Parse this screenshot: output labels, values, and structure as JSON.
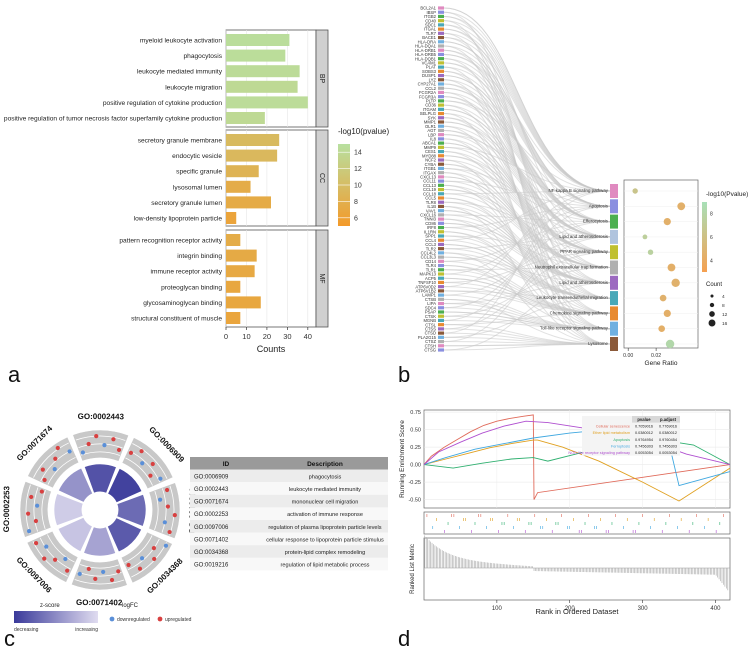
{
  "panel_letters": [
    "a",
    "b",
    "c",
    "d"
  ],
  "chart_data": [
    {
      "panel": "a",
      "type": "bar",
      "orientation": "horizontal",
      "xlabel": "Counts",
      "xticks": [
        0,
        10,
        20,
        30,
        40
      ],
      "xlim": [
        0,
        44
      ],
      "legend_title": "-log10(pvalue)",
      "legend_ticks": [
        14,
        12,
        10,
        8,
        6
      ],
      "legend_range": [
        5,
        15
      ],
      "colors": {
        "high": "#b8e0a0",
        "low": "#f39a2a",
        "strip": "#d0d0d0"
      },
      "groups": [
        {
          "name": "BP",
          "terms": [
            {
              "label": "myeloid leukocyte activation",
              "count": 31,
              "logp": 14.6
            },
            {
              "label": "phagocytosis",
              "count": 29,
              "logp": 14.5
            },
            {
              "label": "leukocyte mediated immunity",
              "count": 36,
              "logp": 14.3
            },
            {
              "label": "leukocyte migration",
              "count": 35,
              "logp": 14.0
            },
            {
              "label": "positive regulation of cytokine production",
              "count": 40,
              "logp": 14.4
            },
            {
              "label": "positive regulation of tumor necrosis factor superfamily cytokine production",
              "count": 19,
              "logp": 14.0
            }
          ]
        },
        {
          "name": "CC",
          "terms": [
            {
              "label": "secretory granule membrane",
              "count": 26,
              "logp": 9.5
            },
            {
              "label": "endocytic vesicle",
              "count": 25,
              "logp": 9.3
            },
            {
              "label": "specific granule",
              "count": 16,
              "logp": 8.6
            },
            {
              "label": "lysosomal lumen",
              "count": 12,
              "logp": 7.6
            },
            {
              "label": "secretory granule lumen",
              "count": 22,
              "logp": 7.4
            },
            {
              "label": "low-density lipoprotein particle",
              "count": 5,
              "logp": 6.4
            }
          ]
        },
        {
          "name": "MF",
          "terms": [
            {
              "label": "pattern recognition receptor activity",
              "count": 7,
              "logp": 7.5
            },
            {
              "label": "integrin binding",
              "count": 15,
              "logp": 7.3
            },
            {
              "label": "immune receptor activity",
              "count": 14,
              "logp": 7.1
            },
            {
              "label": "proteoglycan binding",
              "count": 7,
              "logp": 6.9
            },
            {
              "label": "glycosaminoglycan binding",
              "count": 17,
              "logp": 6.8
            },
            {
              "label": "structural constituent of muscle",
              "count": 7,
              "logp": 6.6
            }
          ]
        }
      ]
    },
    {
      "panel": "b",
      "type": "scatter",
      "subtype": "sankey-dot",
      "genes": [
        "BCL2A1",
        "IBSP",
        "ITGB2",
        "CD40",
        "SDC1",
        "ITGAL",
        "TLR7",
        "BACE1",
        "HLA-DRA",
        "HLA-DQA1",
        "HLA-DRB1",
        "HLA-DRB5",
        "HLA-DQB1",
        "VCAM1",
        "PLAT",
        "SOBS3",
        "DUSP1",
        "LYZ",
        "CYP27A1",
        "CCL2",
        "FCGR2A",
        "FCGR3A",
        "PLTP",
        "CD36",
        "ITGAM",
        "SELPLG",
        "SYK",
        "MMP1",
        "OLR1",
        "AGT",
        "LBP",
        "IL8",
        "ABCA1",
        "MMP9",
        "CES1",
        "MYD88",
        "NCF2",
        "CYBA",
        "ITGB1",
        "ITGAX",
        "CXCL13",
        "CCL11",
        "CCL13",
        "CCL19",
        "CCL18",
        "CCL5",
        "TLR8",
        "IL1B",
        "VAV1",
        "CXCL16",
        "TNNI3",
        "CD86",
        "IRF8",
        "IL1RN",
        "SPP1",
        "CCL4",
        "CCL3",
        "TLR2",
        "CCL4L2",
        "CCL3L3",
        "CD14",
        "TLR4",
        "TLR1",
        "MAPK13",
        "ACP5",
        "TNFSF10",
        "ATP6V0D2",
        "ATP6V1B2",
        "LAMP1",
        "CTSB",
        "LIPA",
        "SDC4",
        "PSAP",
        "CTSK",
        "MGNB",
        "CTSL",
        "CTSS",
        "CTSD",
        "PLA2G15",
        "CTSZ",
        "CTSH",
        "CTSG"
      ],
      "pathways": [
        {
          "name": "NF-kappa B signaling pathway",
          "color": "#e08ac0",
          "gene_ratio": 0.005,
          "logp": 6.4,
          "count": 5
        },
        {
          "name": "Apoptosis",
          "color": "#8a8fe0",
          "gene_ratio": 0.038,
          "logp": 4.5,
          "count": 9
        },
        {
          "name": "Efferocytosis",
          "color": "#4caf50",
          "gene_ratio": 0.028,
          "logp": 4.5,
          "count": 8
        },
        {
          "name": "Lipid and atherosclerosis",
          "color": "#b0c4de",
          "gene_ratio": 0.012,
          "logp": 7.4,
          "count": 4
        },
        {
          "name": "PPAR signaling pathway",
          "color": "#c0c030",
          "gene_ratio": 0.016,
          "logp": 7.6,
          "count": 5
        },
        {
          "name": "Neutrophil extracellular trap formation",
          "color": "#b0b0b0",
          "gene_ratio": 0.031,
          "logp": 4.4,
          "count": 9
        },
        {
          "name": "Lipid and atherosclerosis",
          "color": "#9c6ac0",
          "gene_ratio": 0.034,
          "logp": 4.6,
          "count": 10
        },
        {
          "name": "Leukocyte transendothelial migration",
          "color": "#48a8b8",
          "gene_ratio": 0.025,
          "logp": 4.6,
          "count": 7
        },
        {
          "name": "Chemokine signaling pathway",
          "color": "#e88a30",
          "gene_ratio": 0.028,
          "logp": 4.4,
          "count": 8
        },
        {
          "name": "Toll-like receptor signaling pathway",
          "color": "#70b0e0",
          "gene_ratio": 0.024,
          "logp": 4.4,
          "count": 7
        },
        {
          "name": "Lysosome",
          "color": "#8b5a3a",
          "gene_ratio": 0.03,
          "logp": 8.2,
          "count": 10
        }
      ],
      "xlabel": "Gene Ratio",
      "xticks": [
        0.0,
        0.02
      ],
      "xlim": [
        -0.003,
        0.05
      ],
      "legend_title": "-log10(Pvalue)",
      "legend_ticks": [
        8,
        6,
        4
      ],
      "legend_range": [
        3,
        9
      ],
      "size_title": "Count",
      "size_ticks": [
        4,
        8,
        12,
        16
      ]
    },
    {
      "panel": "c",
      "type": "pie",
      "subtype": "go-circle",
      "terms": [
        {
          "id": "GO:0006909",
          "description": "phagocytosis",
          "zscore": 0.85
        },
        {
          "id": "GO:0002443",
          "description": "leukocyte mediated immunity",
          "zscore": 0.95
        },
        {
          "id": "GO:0071674",
          "description": "mononuclear cell migration",
          "zscore": 0.7
        },
        {
          "id": "GO:0002253",
          "description": "activation of immune response",
          "zscore": 0.8
        },
        {
          "id": "GO:0097006",
          "description": "regulation of plasma lipoprotein particle levels",
          "zscore": 0.35
        },
        {
          "id": "GO:0071402",
          "description": "cellular response to lipoprotein particle stimulus",
          "zscore": 0.15
        },
        {
          "id": "GO:0034368",
          "description": "protein-lipid complex remodeling",
          "zscore": 0.1
        },
        {
          "id": "GO:0019216",
          "description": "regulation of lipid metabolic process",
          "zscore": 0.45
        }
      ],
      "table_headers": [
        "ID",
        "Description"
      ],
      "zscore_legend": {
        "title": "z-score",
        "low": "decreasing",
        "high": "increasing"
      },
      "logfc_legend": {
        "title": "logFC",
        "down": "downregulated",
        "up": "upregulated"
      }
    },
    {
      "panel": "d",
      "type": "line",
      "subtype": "gsea",
      "ylabel": "Running Enrichment Score",
      "yticks": [
        0.75,
        0.5,
        0.25,
        0.0,
        -0.25,
        -0.5
      ],
      "ylim": [
        -0.62,
        0.78
      ],
      "xlabel": "Rank in Ordered Dataset",
      "xticks": [
        100,
        200,
        300,
        400
      ],
      "xlim": [
        0,
        420
      ],
      "metric_ylabel": "Ranked List Metric",
      "table_headers": [
        "pvalue",
        "p.adjust"
      ],
      "series": [
        {
          "name": "Cellular senescence",
          "color": "#e06a5a",
          "pvalue": "0.7059016",
          "padjust": "0.7769016",
          "x": [
            0,
            10,
            28,
            46,
            64,
            82,
            100,
            118,
            136,
            150,
            151,
            156,
            420
          ],
          "y": [
            0.0,
            0.12,
            0.25,
            0.36,
            0.47,
            0.56,
            0.62,
            0.66,
            0.69,
            0.71,
            -0.5,
            -0.4,
            0.0
          ]
        },
        {
          "name": "Ether lipid metabolism",
          "color": "#e0a020",
          "pvalue": "0.0380012",
          "padjust": "0.0380012",
          "x": [
            0,
            30,
            60,
            90,
            120,
            150,
            156,
            190,
            240,
            300,
            350,
            420
          ],
          "y": [
            0.0,
            0.08,
            0.16,
            0.24,
            0.3,
            0.35,
            0.35,
            0.25,
            0.05,
            -0.25,
            -0.52,
            -0.05
          ]
        },
        {
          "name": "Apoptosis",
          "color": "#30b070",
          "pvalue": "0.9764954",
          "padjust": "0.9760454",
          "x": [
            0,
            40,
            80,
            120,
            150,
            170,
            220,
            270,
            320,
            345,
            370,
            420
          ],
          "y": [
            0.0,
            -0.05,
            0.02,
            0.08,
            0.1,
            0.05,
            0.18,
            0.25,
            0.3,
            0.32,
            0.28,
            0.0
          ]
        },
        {
          "name": "Ferroptosis",
          "color": "#40a8e0",
          "pvalue": "0.7456303",
          "padjust": "0.7456303",
          "x": [
            0,
            30,
            70,
            110,
            150,
            200,
            250,
            300,
            330,
            350,
            420
          ],
          "y": [
            0.0,
            0.1,
            0.22,
            0.3,
            0.38,
            0.45,
            0.5,
            0.55,
            0.58,
            -0.3,
            -0.1
          ]
        },
        {
          "name": "NOD-like receptor signaling pathway",
          "color": "#b050d0",
          "pvalue": "0.0053054",
          "padjust": "0.0053054",
          "x": [
            0,
            20,
            50,
            80,
            110,
            140,
            170,
            220,
            270,
            320,
            360,
            420
          ],
          "y": [
            0.0,
            0.18,
            0.32,
            0.45,
            0.55,
            0.62,
            0.6,
            0.52,
            0.42,
            0.3,
            0.15,
            0.0
          ]
        }
      ]
    }
  ]
}
